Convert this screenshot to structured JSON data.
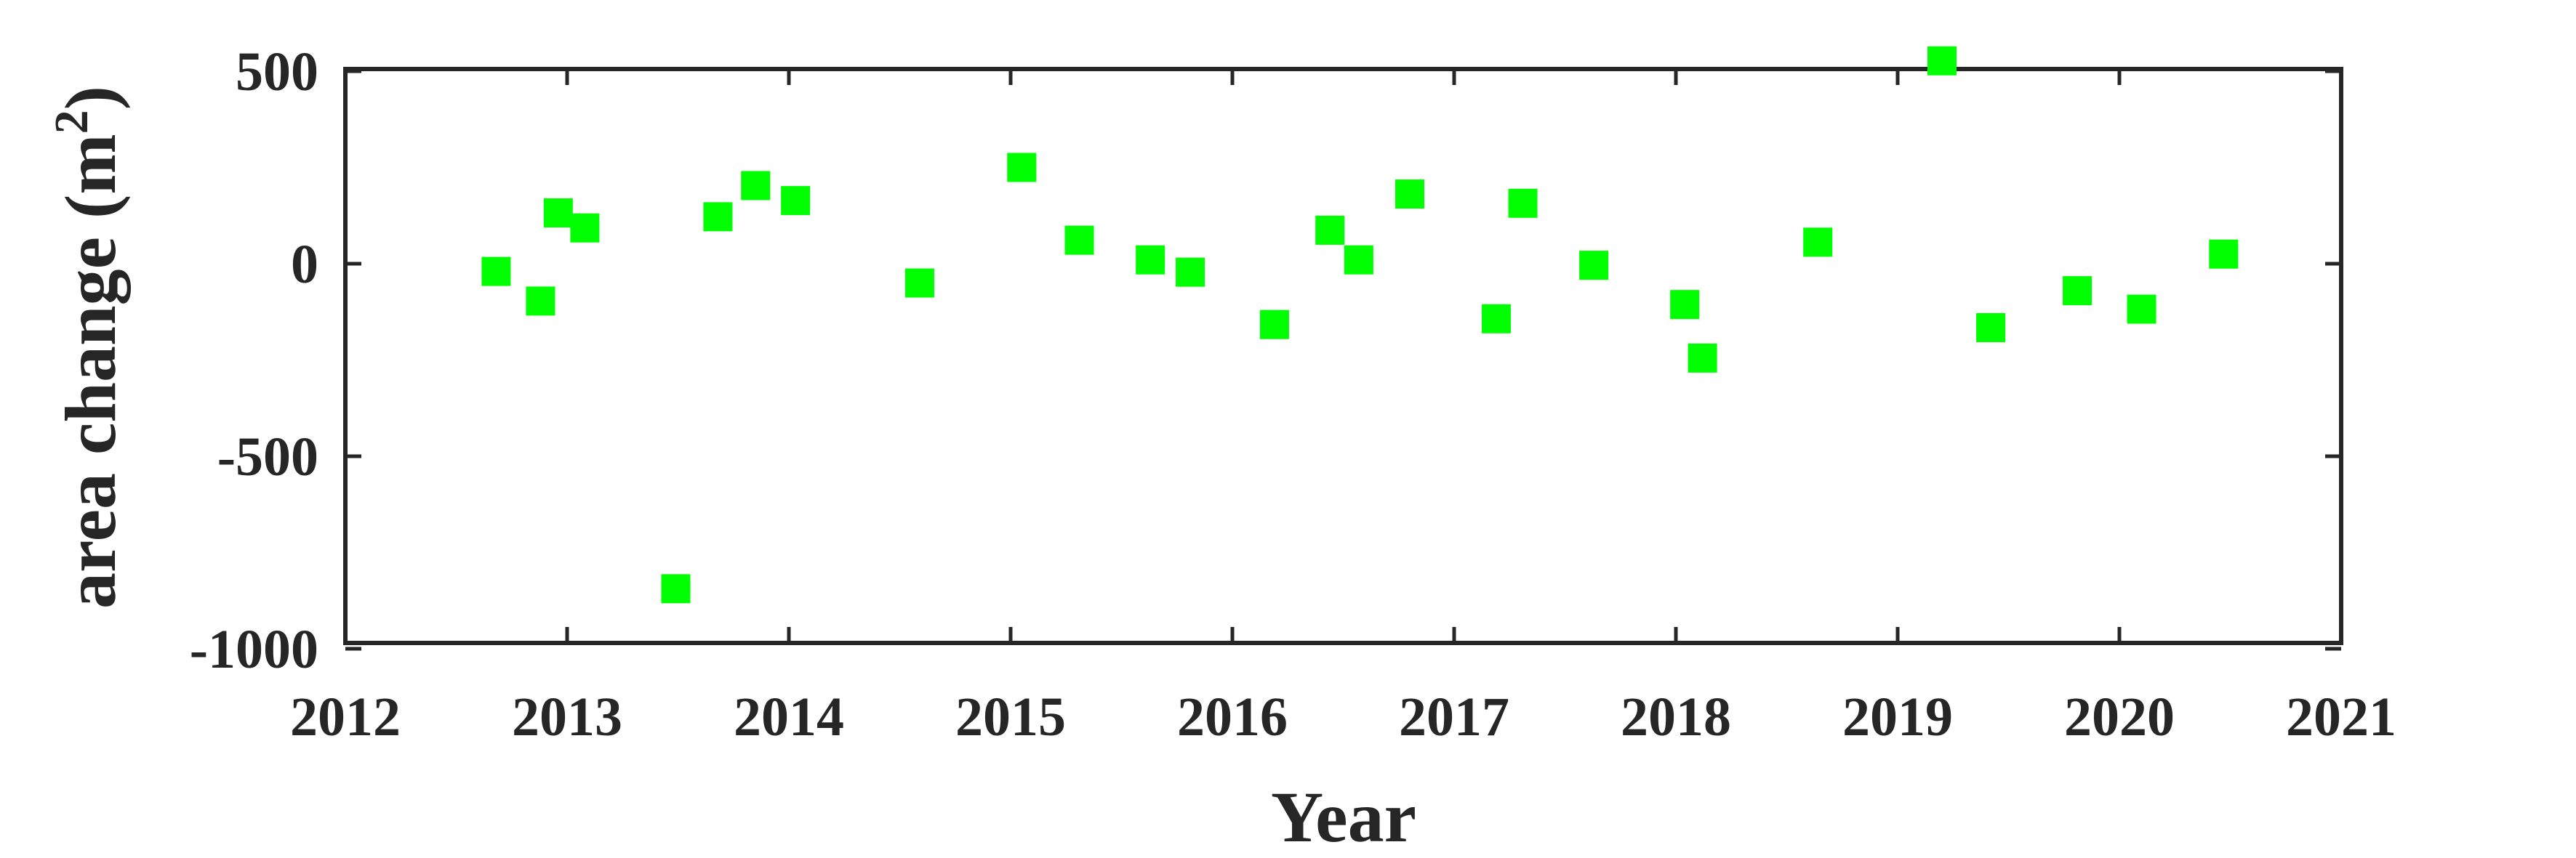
{
  "chart_data": {
    "type": "scatter",
    "title": "",
    "xlabel": "Year",
    "ylabel": "area change (m",
    "ylabel_superscript": "2",
    "ylabel_close": ")",
    "xlim": [
      2012,
      2021
    ],
    "ylim": [
      -1000,
      550
    ],
    "x_ticks": [
      2012,
      2013,
      2014,
      2015,
      2016,
      2017,
      2018,
      2019,
      2020,
      2021
    ],
    "x_tick_labels": [
      "2012",
      "2013",
      "2014",
      "2015",
      "2016",
      "2017",
      "2018",
      "2019",
      "2020",
      "2021"
    ],
    "y_ticks": [
      -1000,
      -500,
      0,
      500
    ],
    "y_tick_labels": [
      "-1000",
      "-500",
      "0",
      "500"
    ],
    "grid": false,
    "marker": "square",
    "marker_color": "#00ff00",
    "axis_color": "#262626",
    "points": [
      {
        "x": 2012.68,
        "y": -20
      },
      {
        "x": 2012.88,
        "y": -97
      },
      {
        "x": 2012.96,
        "y": 132
      },
      {
        "x": 2013.08,
        "y": 93
      },
      {
        "x": 2013.49,
        "y": -844
      },
      {
        "x": 2013.68,
        "y": 122
      },
      {
        "x": 2013.85,
        "y": 203
      },
      {
        "x": 2014.03,
        "y": 164
      },
      {
        "x": 2014.59,
        "y": -50
      },
      {
        "x": 2015.05,
        "y": 250
      },
      {
        "x": 2015.31,
        "y": 61
      },
      {
        "x": 2015.63,
        "y": 10
      },
      {
        "x": 2015.81,
        "y": -22
      },
      {
        "x": 2016.19,
        "y": -158
      },
      {
        "x": 2016.44,
        "y": 87
      },
      {
        "x": 2016.57,
        "y": 10
      },
      {
        "x": 2016.8,
        "y": 181
      },
      {
        "x": 2017.19,
        "y": -143
      },
      {
        "x": 2017.31,
        "y": 157
      },
      {
        "x": 2017.63,
        "y": -4
      },
      {
        "x": 2018.04,
        "y": -106
      },
      {
        "x": 2018.12,
        "y": -245
      },
      {
        "x": 2018.64,
        "y": 56
      },
      {
        "x": 2019.2,
        "y": 527
      },
      {
        "x": 2019.42,
        "y": -166
      },
      {
        "x": 2019.81,
        "y": -70
      },
      {
        "x": 2020.1,
        "y": -118
      },
      {
        "x": 2020.47,
        "y": 25
      }
    ]
  }
}
